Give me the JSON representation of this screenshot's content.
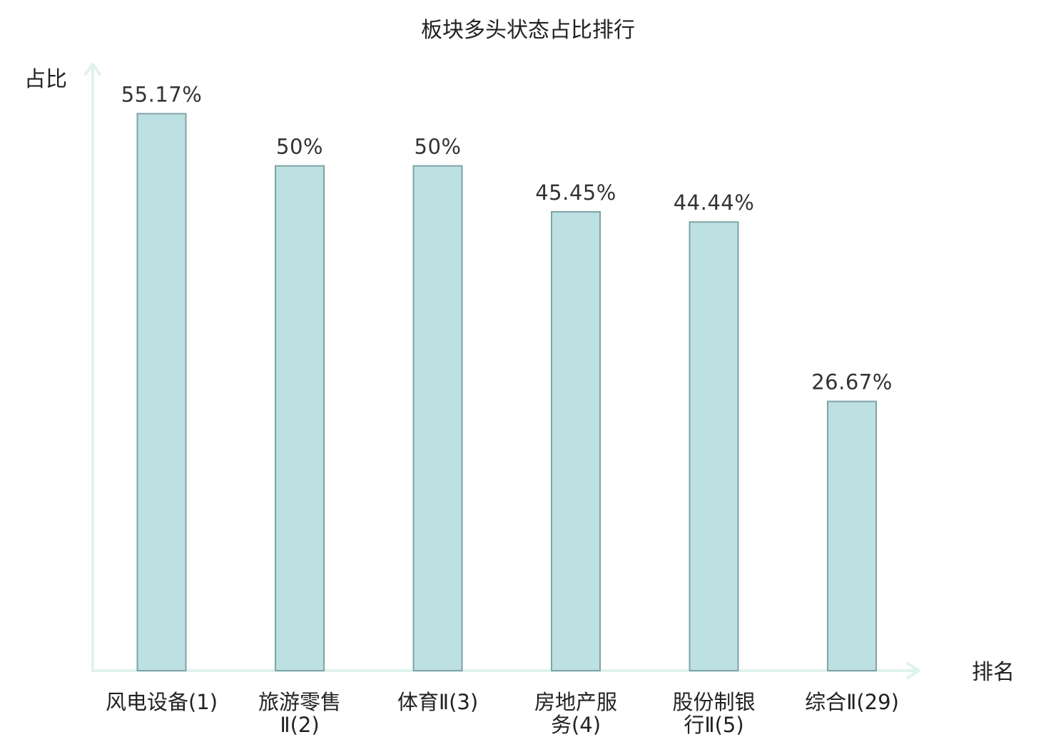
{
  "chart_data": {
    "type": "bar",
    "title": "板块多头状态占比排行",
    "ylabel": "占比",
    "xlabel": "排名",
    "ylim": [
      0,
      60
    ],
    "grid": false,
    "categories": [
      [
        "风电设备(1)"
      ],
      [
        "旅游零售",
        "Ⅱ(2)"
      ],
      [
        "体育Ⅱ(3)"
      ],
      [
        "房地产服",
        "务(4)"
      ],
      [
        "股份制银",
        "行Ⅱ(5)"
      ],
      [
        "综合Ⅱ(29)"
      ]
    ],
    "values": [
      55.17,
      50,
      50,
      45.45,
      44.44,
      26.67
    ],
    "value_labels": [
      "55.17%",
      "50%",
      "50%",
      "45.45%",
      "44.44%",
      "26.67%"
    ],
    "highlight_index": 5,
    "colors": {
      "bar_fill": "#bde0e3",
      "bar_stroke": "#7fa3a6",
      "axis": "#dff2ef",
      "highlight_label": "#e0262a",
      "label": "#222222",
      "value_label": "#333333"
    }
  }
}
